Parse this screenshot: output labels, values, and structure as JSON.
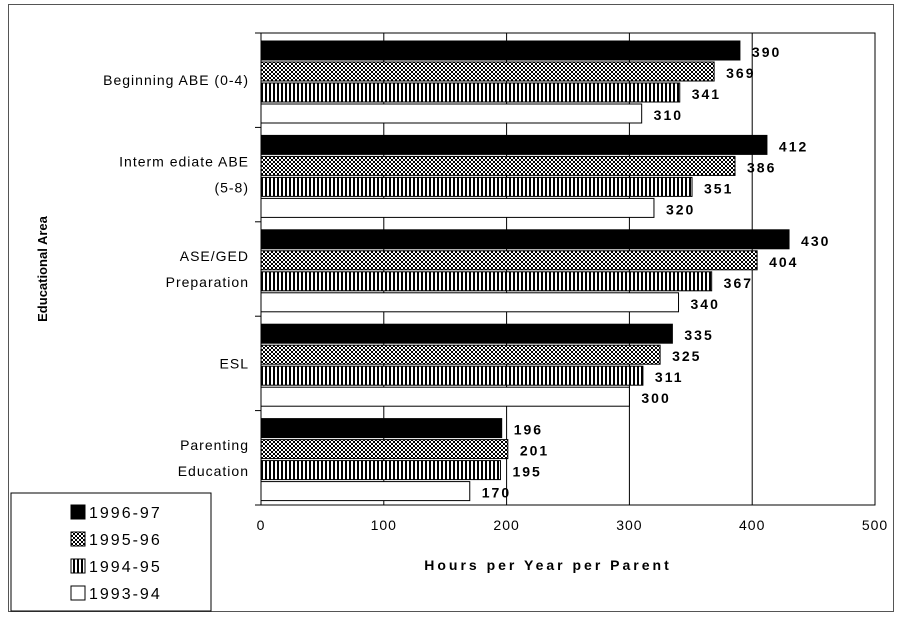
{
  "chart_data": {
    "type": "bar",
    "orientation": "horizontal",
    "title": "",
    "xlabel": "Hours per Year per Parent",
    "ylabel": "Educational Area",
    "xlim": [
      0,
      500
    ],
    "xticks": [
      "0",
      "100",
      "200",
      "300",
      "400",
      "500"
    ],
    "grid": "vertical",
    "legend_position": "bottom-left",
    "categories": [
      [
        "Beginning ABE (0-4)"
      ],
      [
        "Interm ediate ABE",
        "(5-8)"
      ],
      [
        "ASE/GED",
        "Preparation"
      ],
      [
        "ESL"
      ],
      [
        "Parenting",
        "Education"
      ]
    ],
    "series": [
      {
        "name": "1996-97",
        "pattern": "solid",
        "values": [
          390,
          412,
          430,
          335,
          196
        ]
      },
      {
        "name": "1995-96",
        "pattern": "crosshatch",
        "values": [
          369,
          386,
          404,
          325,
          201
        ]
      },
      {
        "name": "1994-95",
        "pattern": "vertical-stripes",
        "values": [
          341,
          351,
          367,
          311,
          195
        ]
      },
      {
        "name": "1993-94",
        "pattern": "none",
        "values": [
          310,
          320,
          340,
          300,
          170
        ]
      }
    ],
    "colors": {
      "bar": "#000000",
      "fill_light": "#ffffff"
    }
  }
}
